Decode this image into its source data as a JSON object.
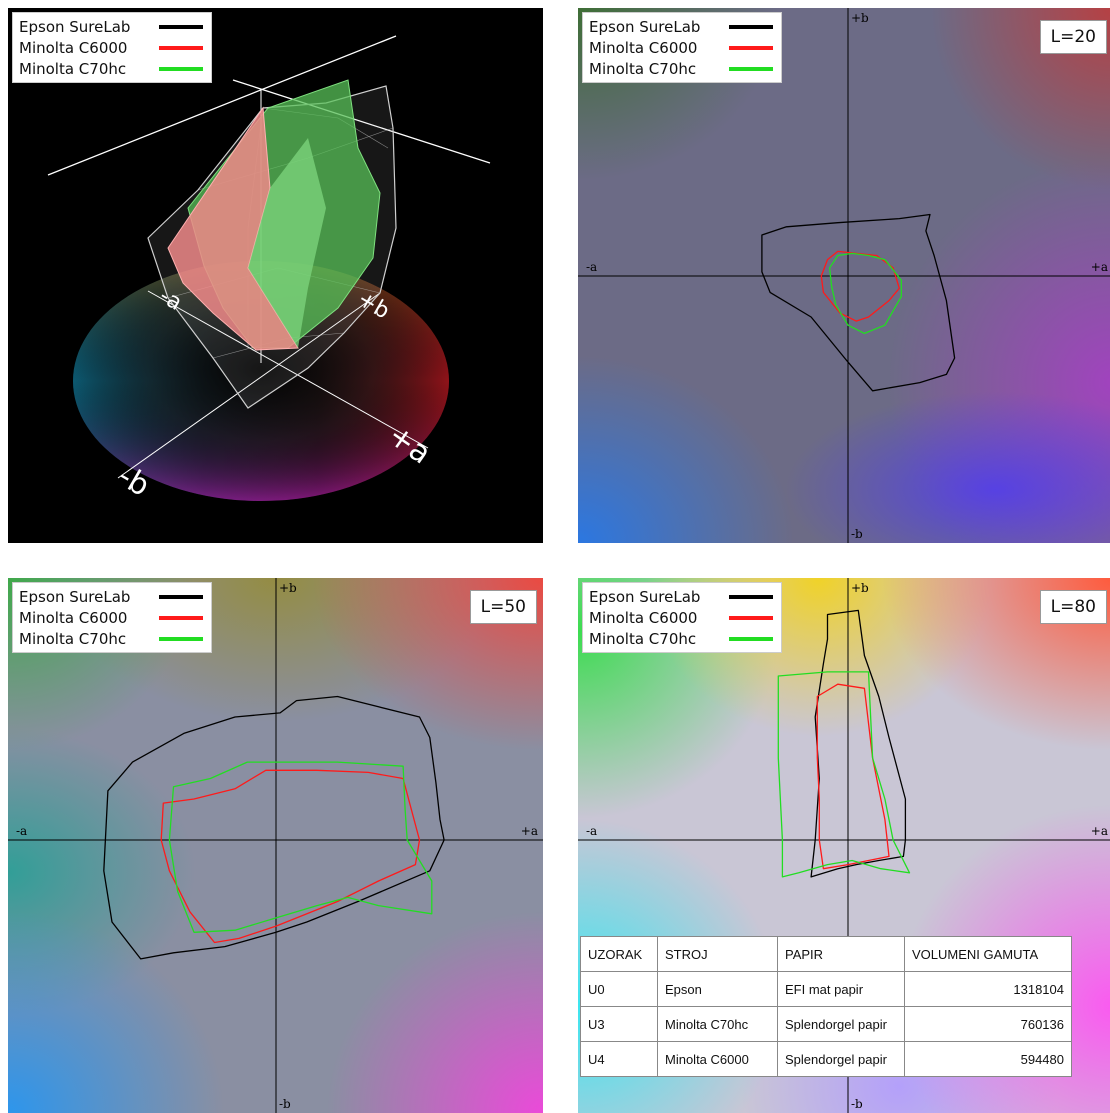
{
  "legend": {
    "epson": {
      "label": "Epson SureLab",
      "color": "#000000"
    },
    "c6000": {
      "label": "Minolta C6000",
      "color": "#ff1a1a"
    },
    "c70hc": {
      "label": "Minolta C70hc",
      "color": "#22dd22"
    }
  },
  "axis_labels": {
    "plus_a": "+a",
    "minus_a": "-a",
    "plus_b": "+b",
    "minus_b": "-b"
  },
  "disc_labels": {
    "minus_a": "-a",
    "plus_b": "+b",
    "plus_a": "+a",
    "minus_b": "-b"
  },
  "l20": {
    "label": "L=20"
  },
  "l50": {
    "label": "L=50"
  },
  "l80": {
    "label": "L=80"
  },
  "table": {
    "headers": [
      "UZORAK",
      "STROJ",
      "PAPIR",
      "VOLUMENI GAMUTA"
    ],
    "rows": [
      [
        "U0",
        "Epson",
        "EFI mat papir",
        "1318104"
      ],
      [
        "U3",
        "Minolta C70hc",
        "Splendorgel papir",
        "760136"
      ],
      [
        "U4",
        "Minolta C6000",
        "Splendorgel papir",
        "594480"
      ]
    ]
  },
  "chart_data": [
    {
      "type": "line",
      "title": "L=20",
      "axes": [
        "+a",
        "-a",
        "+b",
        "-b"
      ],
      "xlim": [
        -128,
        128
      ],
      "ylim": [
        -128,
        128
      ],
      "series": [
        {
          "name": "Epson SureLab",
          "closed": true,
          "points": [
            [
              -42,
              20
            ],
            [
              -30,
              24
            ],
            [
              -5,
              26
            ],
            [
              25,
              28
            ],
            [
              40,
              30
            ],
            [
              38,
              22
            ],
            [
              42,
              10
            ],
            [
              48,
              -12
            ],
            [
              52,
              -40
            ],
            [
              48,
              -48
            ],
            [
              35,
              -52
            ],
            [
              12,
              -56
            ],
            [
              0,
              -42
            ],
            [
              -18,
              -20
            ],
            [
              -38,
              -8
            ],
            [
              -42,
              2
            ]
          ]
        },
        {
          "name": "Minolta C6000",
          "closed": true,
          "points": [
            [
              -10,
              8
            ],
            [
              -5,
              12
            ],
            [
              4,
              11
            ],
            [
              14,
              10
            ],
            [
              22,
              4
            ],
            [
              25,
              -6
            ],
            [
              20,
              -12
            ],
            [
              10,
              -20
            ],
            [
              4,
              -22
            ],
            [
              -4,
              -18
            ],
            [
              -12,
              -8
            ],
            [
              -13,
              0
            ]
          ]
        },
        {
          "name": "Minolta C70hc",
          "closed": true,
          "points": [
            [
              -5,
              10
            ],
            [
              2,
              11
            ],
            [
              10,
              10
            ],
            [
              18,
              8
            ],
            [
              26,
              -2
            ],
            [
              26,
              -10
            ],
            [
              18,
              -24
            ],
            [
              8,
              -28
            ],
            [
              0,
              -24
            ],
            [
              -6,
              -14
            ],
            [
              -8,
              -5
            ],
            [
              -9,
              4
            ]
          ]
        }
      ]
    },
    {
      "type": "line",
      "title": "L=50",
      "axes": [
        "+a",
        "-a",
        "+b",
        "-b"
      ],
      "xlim": [
        -128,
        128
      ],
      "ylim": [
        -128,
        128
      ],
      "series": [
        {
          "name": "Epson SureLab",
          "closed": true,
          "points": [
            [
              -82,
              24
            ],
            [
              -70,
              38
            ],
            [
              -45,
              52
            ],
            [
              -20,
              60
            ],
            [
              2,
              62
            ],
            [
              10,
              68
            ],
            [
              30,
              70
            ],
            [
              50,
              65
            ],
            [
              70,
              60
            ],
            [
              75,
              50
            ],
            [
              78,
              28
            ],
            [
              80,
              10
            ],
            [
              82,
              0
            ],
            [
              75,
              -15
            ],
            [
              40,
              -30
            ],
            [
              15,
              -40
            ],
            [
              0,
              -45
            ],
            [
              -25,
              -52
            ],
            [
              -50,
              -55
            ],
            [
              -66,
              -58
            ],
            [
              -80,
              -40
            ],
            [
              -84,
              -15
            ]
          ]
        },
        {
          "name": "Minolta C6000",
          "closed": true,
          "points": [
            [
              -55,
              18
            ],
            [
              -40,
              20
            ],
            [
              -20,
              25
            ],
            [
              -5,
              34
            ],
            [
              20,
              34
            ],
            [
              45,
              33
            ],
            [
              62,
              30
            ],
            [
              66,
              15
            ],
            [
              70,
              0
            ],
            [
              68,
              -12
            ],
            [
              50,
              -20
            ],
            [
              30,
              -30
            ],
            [
              0,
              -42
            ],
            [
              -18,
              -48
            ],
            [
              -30,
              -50
            ],
            [
              -42,
              -35
            ],
            [
              -52,
              -15
            ],
            [
              -56,
              0
            ]
          ]
        },
        {
          "name": "Minolta C70hc",
          "closed": true,
          "points": [
            [
              -50,
              26
            ],
            [
              -32,
              30
            ],
            [
              -14,
              38
            ],
            [
              30,
              38
            ],
            [
              62,
              36
            ],
            [
              63,
              15
            ],
            [
              64,
              0
            ],
            [
              70,
              -10
            ],
            [
              76,
              -20
            ],
            [
              76,
              -36
            ],
            [
              50,
              -32
            ],
            [
              35,
              -28
            ],
            [
              20,
              -32
            ],
            [
              0,
              -38
            ],
            [
              -20,
              -44
            ],
            [
              -40,
              -45
            ],
            [
              -48,
              -25
            ],
            [
              -52,
              0
            ]
          ]
        }
      ]
    },
    {
      "type": "line",
      "title": "L=80",
      "axes": [
        "+a",
        "-a",
        "+b",
        "-b"
      ],
      "xlim": [
        -128,
        128
      ],
      "ylim": [
        -128,
        128
      ],
      "series": [
        {
          "name": "Epson SureLab",
          "closed": true,
          "points": [
            [
              -10,
              110
            ],
            [
              5,
              112
            ],
            [
              8,
              90
            ],
            [
              15,
              70
            ],
            [
              20,
              50
            ],
            [
              28,
              20
            ],
            [
              28,
              0
            ],
            [
              27,
              -8
            ],
            [
              15,
              -10
            ],
            [
              4,
              -12
            ],
            [
              -5,
              -14
            ],
            [
              -18,
              -18
            ],
            [
              -16,
              0
            ],
            [
              -14,
              30
            ],
            [
              -16,
              60
            ],
            [
              -12,
              86
            ],
            [
              -10,
              98
            ]
          ]
        },
        {
          "name": "Minolta C6000",
          "closed": true,
          "points": [
            [
              -15,
              70
            ],
            [
              -5,
              76
            ],
            [
              8,
              74
            ],
            [
              12,
              40
            ],
            [
              18,
              10
            ],
            [
              20,
              -8
            ],
            [
              10,
              -10
            ],
            [
              0,
              -12
            ],
            [
              -12,
              -14
            ],
            [
              -14,
              0
            ],
            [
              -14,
              20
            ],
            [
              -15,
              40
            ]
          ]
        },
        {
          "name": "Minolta C70hc",
          "closed": true,
          "points": [
            [
              -34,
              80
            ],
            [
              -10,
              82
            ],
            [
              10,
              82
            ],
            [
              12,
              40
            ],
            [
              18,
              20
            ],
            [
              22,
              0
            ],
            [
              30,
              -16
            ],
            [
              16,
              -14
            ],
            [
              2,
              -10
            ],
            [
              -10,
              -12
            ],
            [
              -24,
              -16
            ],
            [
              -32,
              -18
            ],
            [
              -32,
              0
            ],
            [
              -34,
              40
            ]
          ]
        }
      ]
    }
  ]
}
